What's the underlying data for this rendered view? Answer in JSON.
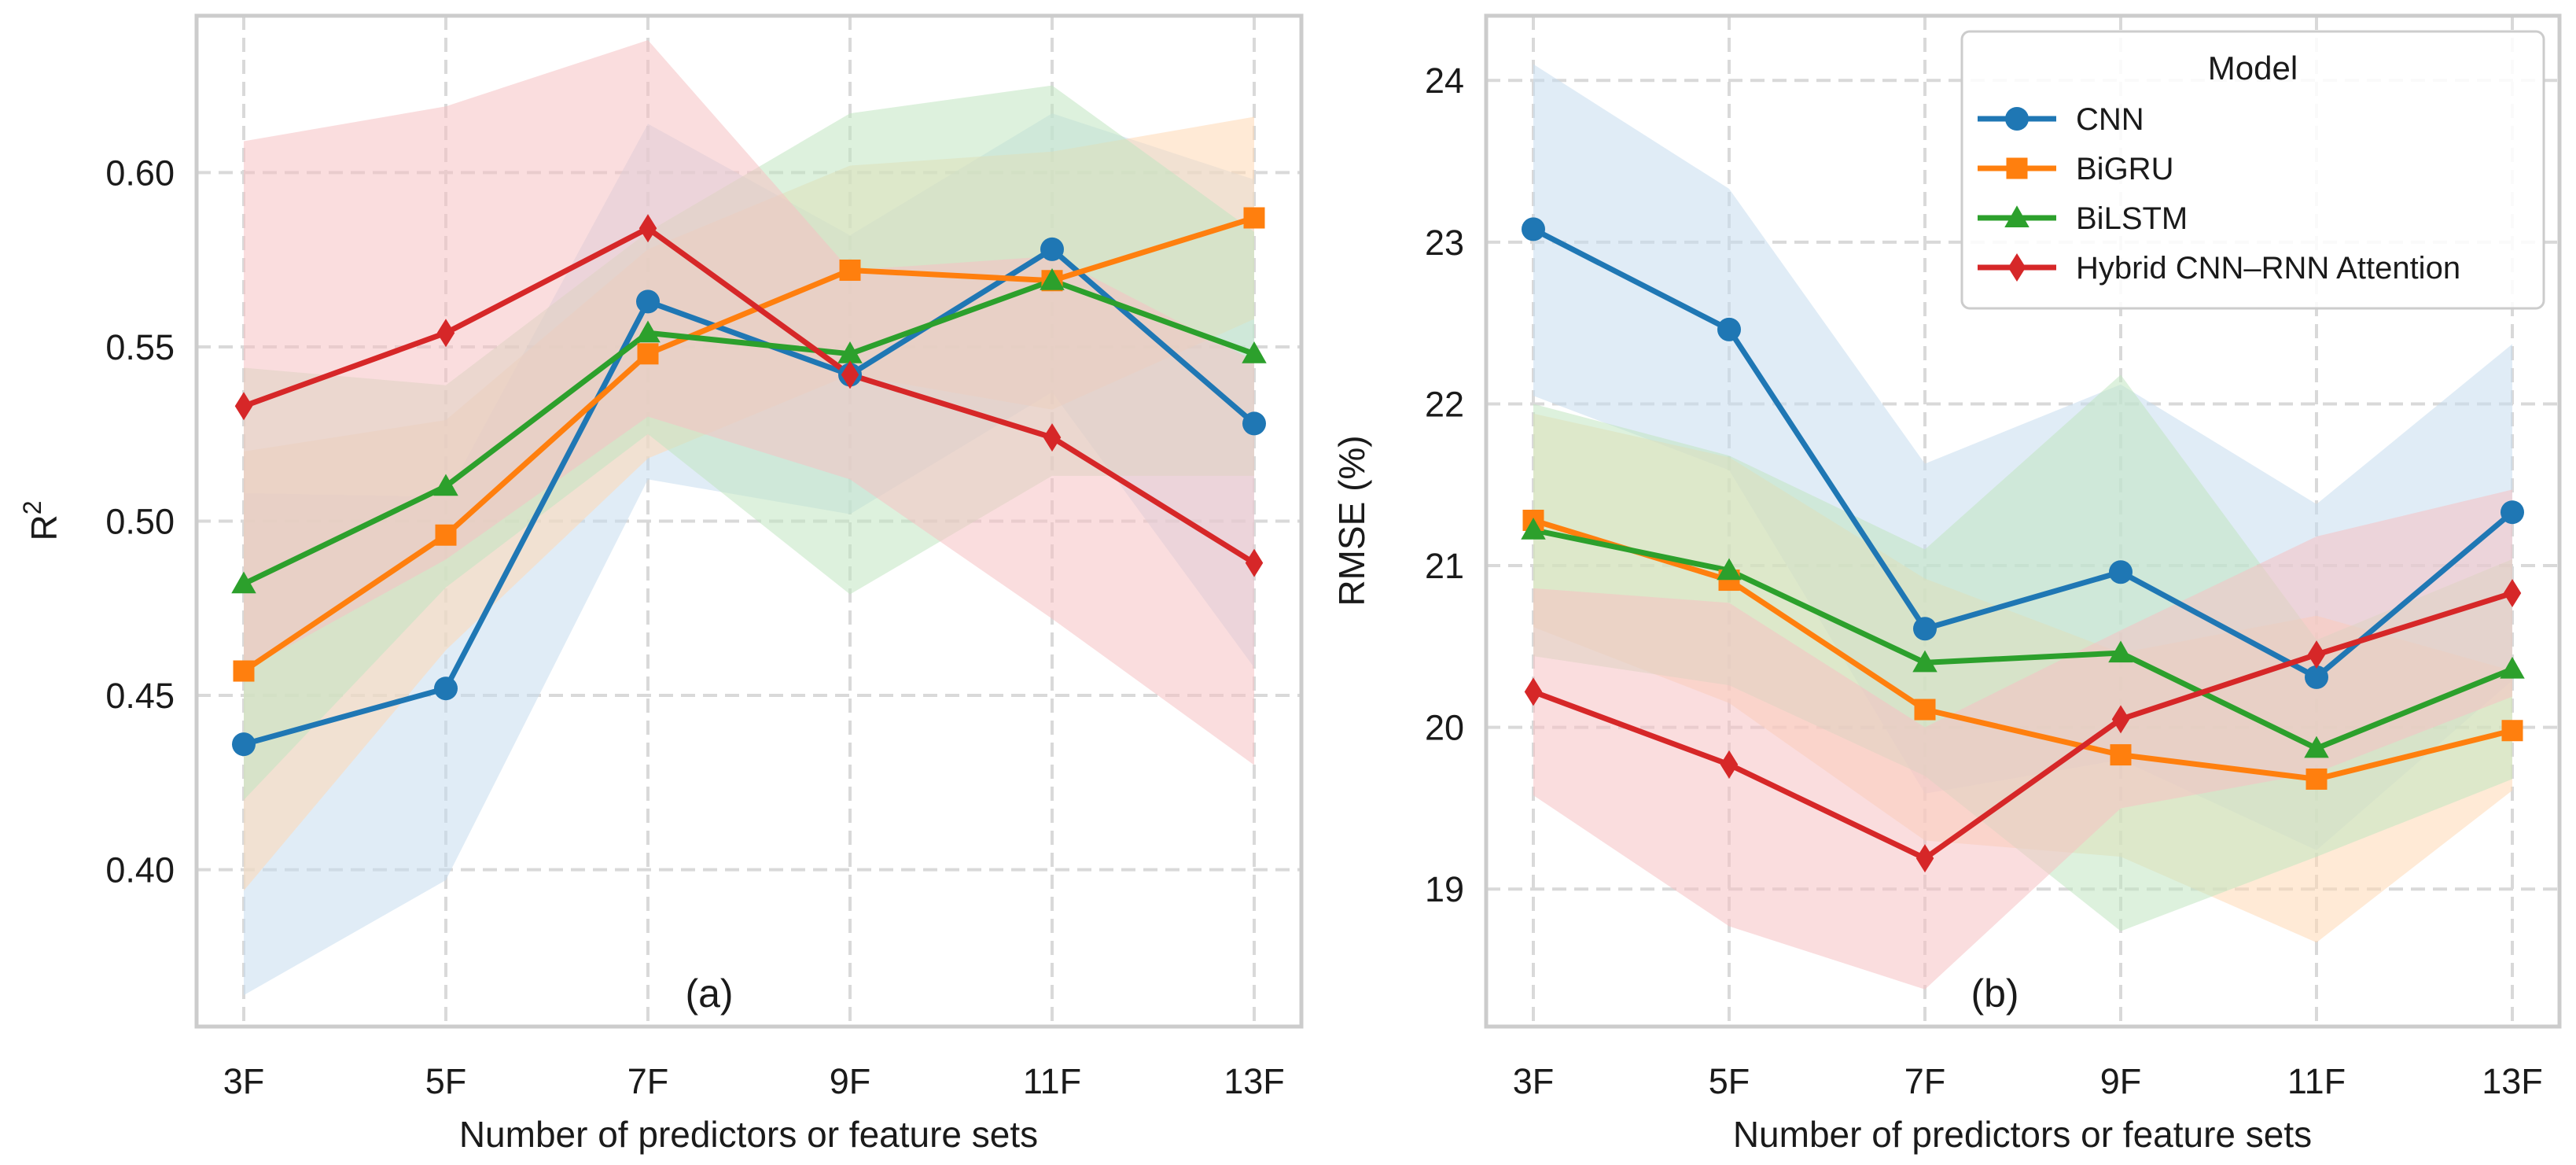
{
  "chart_data": [
    {
      "type": "line",
      "panel_label": "(a)",
      "categories": [
        "3F",
        "5F",
        "7F",
        "9F",
        "11F",
        "13F"
      ],
      "xlabel": "Number of predictors or feature sets",
      "ylabel_base": "R",
      "ylabel_sup": "2",
      "ylim": [
        0.355,
        0.645
      ],
      "yticks": [
        0.4,
        0.45,
        0.5,
        0.55,
        0.6
      ],
      "ytick_labels": [
        "0.40",
        "0.45",
        "0.50",
        "0.55",
        "0.60"
      ],
      "grid": true,
      "series": [
        {
          "name": "CNN",
          "values": [
            0.436,
            0.452,
            0.563,
            0.542,
            0.578,
            0.528
          ],
          "lower": [
            0.364,
            0.397,
            0.512,
            0.502,
            0.537,
            0.458
          ],
          "upper": [
            0.508,
            0.507,
            0.614,
            0.582,
            0.617,
            0.598
          ]
        },
        {
          "name": "BiGRU",
          "values": [
            0.457,
            0.496,
            0.548,
            0.572,
            0.569,
            0.587
          ],
          "lower": [
            0.394,
            0.463,
            0.518,
            0.542,
            0.532,
            0.558
          ],
          "upper": [
            0.52,
            0.529,
            0.578,
            0.602,
            0.606,
            0.616
          ]
        },
        {
          "name": "BiLSTM",
          "values": [
            0.482,
            0.51,
            0.554,
            0.548,
            0.569,
            0.548
          ],
          "lower": [
            0.42,
            0.481,
            0.525,
            0.479,
            0.513,
            0.513
          ],
          "upper": [
            0.544,
            0.539,
            0.583,
            0.617,
            0.625,
            0.583
          ]
        },
        {
          "name": "Hybrid CNN–RNN Attention",
          "values": [
            0.533,
            0.554,
            0.584,
            0.542,
            0.524,
            0.488
          ],
          "lower": [
            0.457,
            0.489,
            0.53,
            0.512,
            0.472,
            0.43
          ],
          "upper": [
            0.609,
            0.619,
            0.638,
            0.572,
            0.576,
            0.546
          ]
        }
      ]
    },
    {
      "type": "line",
      "panel_label": "(b)",
      "categories": [
        "3F",
        "5F",
        "7F",
        "9F",
        "11F",
        "13F"
      ],
      "xlabel": "Number of predictors or feature sets",
      "ylabel": "RMSE (%)",
      "ylim": [
        18.15,
        24.4
      ],
      "yticks": [
        19,
        20,
        21,
        22,
        23,
        24
      ],
      "ytick_labels": [
        "19",
        "20",
        "21",
        "22",
        "23",
        "24"
      ],
      "grid": true,
      "legend": {
        "title": "Model",
        "placement": "top-right"
      },
      "series": [
        {
          "name": "CNN",
          "values": [
            23.08,
            22.46,
            20.61,
            20.96,
            20.31,
            21.33
          ],
          "lower": [
            22.05,
            21.59,
            19.59,
            19.8,
            19.24,
            20.29
          ],
          "upper": [
            24.1,
            23.33,
            21.63,
            22.12,
            21.38,
            22.37
          ]
        },
        {
          "name": "BiGRU",
          "values": [
            21.28,
            20.91,
            20.11,
            19.83,
            19.68,
            19.98
          ],
          "lower": [
            20.62,
            20.15,
            19.3,
            19.2,
            18.67,
            19.61
          ],
          "upper": [
            21.94,
            21.67,
            20.92,
            20.46,
            20.69,
            20.35
          ]
        },
        {
          "name": "BiLSTM",
          "values": [
            21.22,
            20.97,
            20.4,
            20.46,
            19.87,
            20.36
          ],
          "lower": [
            20.44,
            20.26,
            19.7,
            18.74,
            19.2,
            19.68
          ],
          "upper": [
            22.0,
            21.68,
            21.1,
            22.18,
            20.54,
            21.04
          ]
        },
        {
          "name": "Hybrid CNN–RNN Attention",
          "values": [
            20.22,
            19.77,
            19.19,
            20.05,
            20.45,
            20.83
          ],
          "lower": [
            19.58,
            18.77,
            18.38,
            19.5,
            19.72,
            20.19
          ],
          "upper": [
            20.86,
            20.77,
            20.0,
            20.6,
            21.18,
            21.47
          ]
        }
      ]
    }
  ],
  "styles": [
    {
      "color": "#1f77b4",
      "marker": "circle"
    },
    {
      "color": "#ff7f0e",
      "marker": "square"
    },
    {
      "color": "#2ca02c",
      "marker": "triangle"
    },
    {
      "color": "#d62728",
      "marker": "diamond"
    }
  ],
  "fill_colors": [
    "#c6dcef",
    "#ffd8b4",
    "#c1e6c1",
    "#f5c1c2"
  ]
}
